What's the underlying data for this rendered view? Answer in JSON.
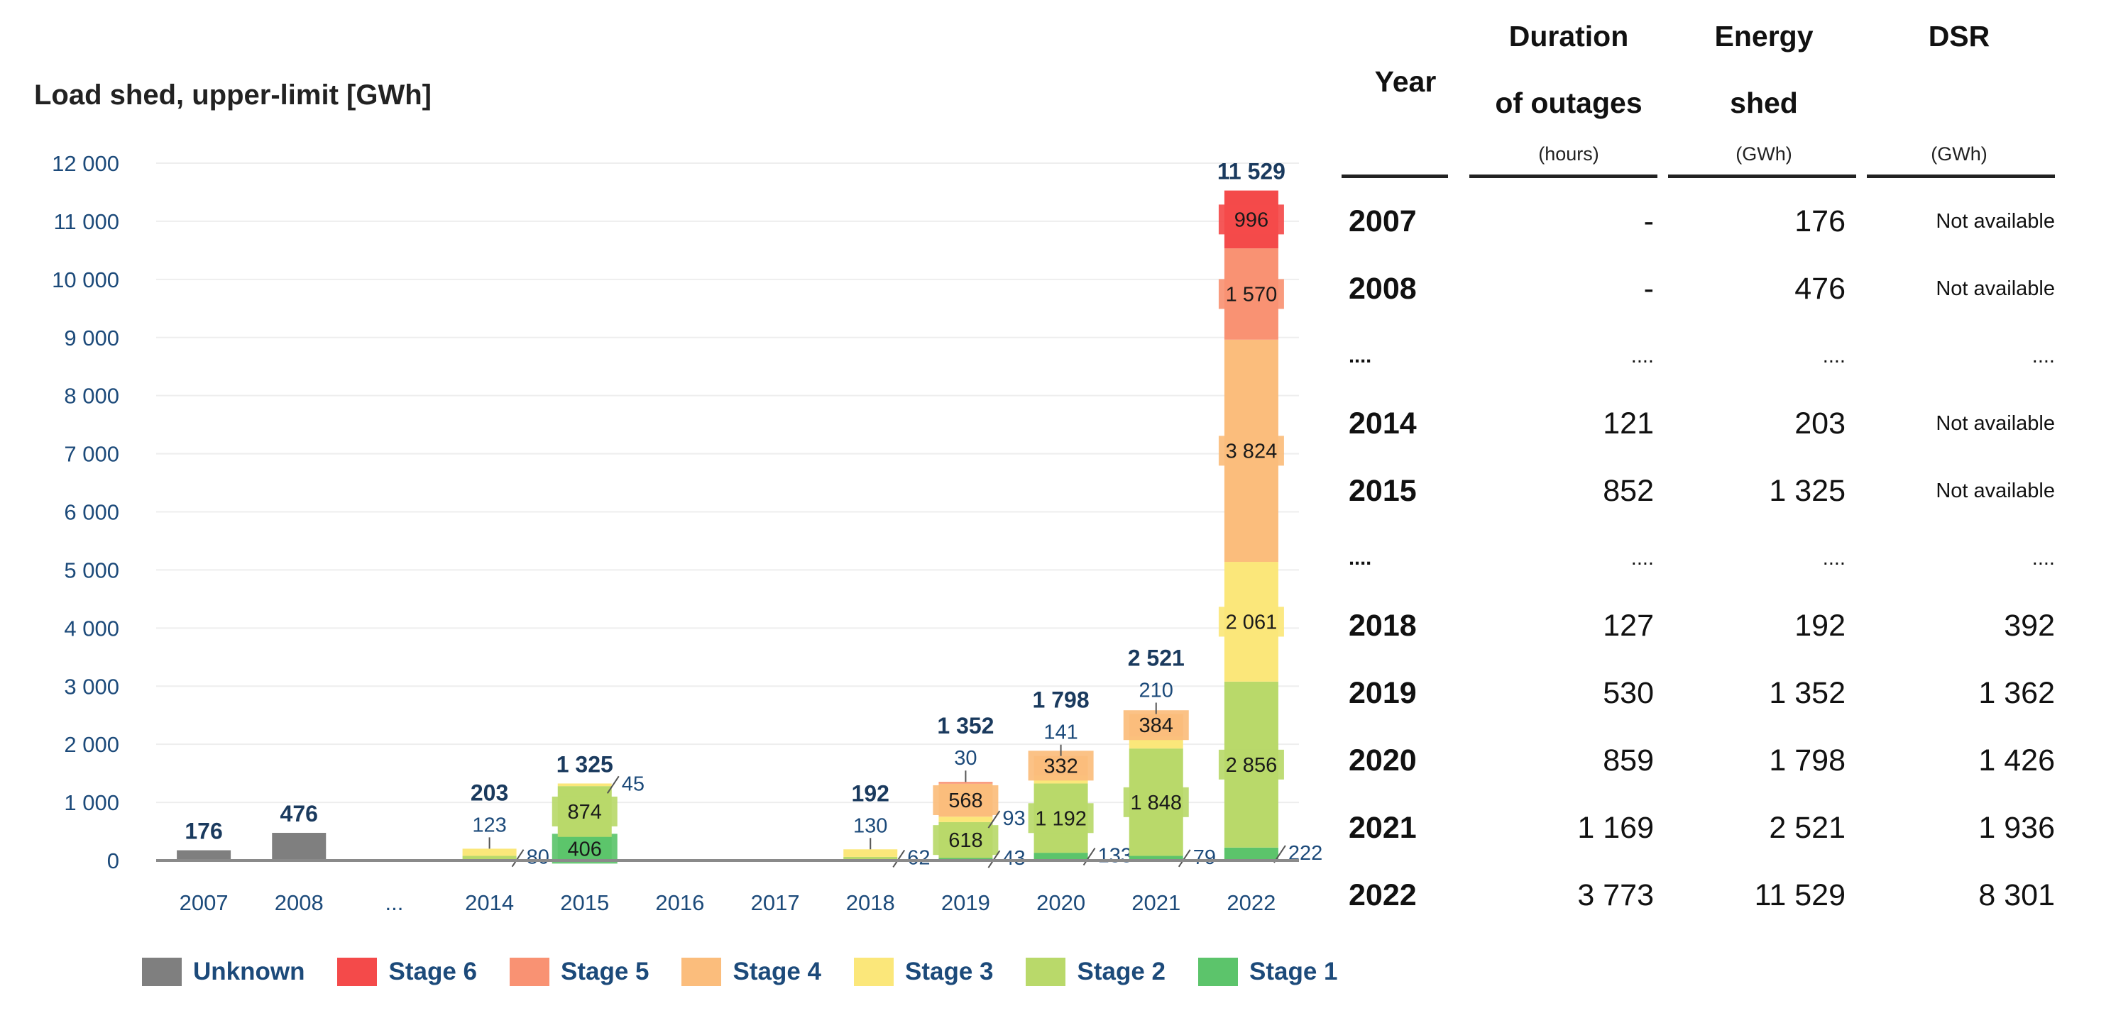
{
  "chart_data": {
    "type": "bar",
    "stacked": true,
    "title": "Load shed, upper-limit [GWh]",
    "categories": [
      "2007",
      "2008",
      "...",
      "2014",
      "2015",
      "2016",
      "2017",
      "2018",
      "2019",
      "2020",
      "2021",
      "2022"
    ],
    "ylim": [
      0,
      12000
    ],
    "yticks": [
      "0",
      "1 000",
      "2 000",
      "3 000",
      "4 000",
      "5 000",
      "6 000",
      "7 000",
      "8 000",
      "9 000",
      "10 000",
      "11 000",
      "12 000"
    ],
    "legend_position": "bottom",
    "series": [
      {
        "name": "Unknown",
        "color": "#7f7f7f",
        "values": [
          176,
          476,
          null,
          0,
          0,
          0,
          0,
          0,
          0,
          0,
          0,
          0
        ]
      },
      {
        "name": "Stage 1",
        "color": "#5cc46b",
        "values": [
          null,
          null,
          null,
          0,
          406,
          0,
          0,
          0,
          43,
          133,
          79,
          222
        ]
      },
      {
        "name": "Stage 2",
        "color": "#b9d96a",
        "values": [
          null,
          null,
          null,
          80,
          874,
          0,
          0,
          62,
          618,
          1192,
          1848,
          2856
        ]
      },
      {
        "name": "Stage 3",
        "color": "#fbe77a",
        "values": [
          null,
          null,
          null,
          123,
          45,
          0,
          0,
          130,
          93,
          141,
          210,
          2061
        ]
      },
      {
        "name": "Stage 4",
        "color": "#fbbd7c",
        "values": [
          null,
          null,
          null,
          0,
          0,
          0,
          0,
          0,
          568,
          332,
          384,
          3824
        ]
      },
      {
        "name": "Stage 5",
        "color": "#f99273",
        "values": [
          null,
          null,
          null,
          0,
          0,
          0,
          0,
          0,
          30,
          0,
          0,
          1570
        ]
      },
      {
        "name": "Stage 6",
        "color": "#f44a4a",
        "values": [
          null,
          null,
          null,
          0,
          0,
          0,
          0,
          0,
          0,
          0,
          0,
          996
        ]
      }
    ],
    "totals": [
      176,
      476,
      null,
      203,
      1325,
      null,
      null,
      192,
      1352,
      1798,
      2521,
      11529
    ],
    "total_labels": [
      "176",
      "476",
      "",
      "203",
      "1 325",
      "",
      "",
      "192",
      "1 352",
      "1 798",
      "2 521",
      "11 529"
    ]
  },
  "legend": [
    {
      "label": "Unknown",
      "color": "#7f7f7f"
    },
    {
      "label": "Stage 6",
      "color": "#f44a4a"
    },
    {
      "label": "Stage 5",
      "color": "#f99273"
    },
    {
      "label": "Stage 4",
      "color": "#fbbd7c"
    },
    {
      "label": "Stage 3",
      "color": "#fbe77a"
    },
    {
      "label": "Stage 2",
      "color": "#b9d96a"
    },
    {
      "label": "Stage 1",
      "color": "#5cc46b"
    }
  ],
  "table": {
    "headers": {
      "year": "Year",
      "duration_l1": "Duration",
      "duration_l2": "of outages",
      "duration_unit": "(hours)",
      "energy_l1": "Energy",
      "energy_l2": "shed",
      "energy_unit": "(GWh)",
      "dsr": "DSR",
      "dsr_unit": "(GWh)"
    },
    "rows": [
      {
        "year": "2007",
        "duration": "-",
        "energy": "176",
        "dsr": "Not available"
      },
      {
        "year": "2008",
        "duration": "-",
        "energy": "476",
        "dsr": "Not available"
      },
      {
        "year": "....",
        "duration": "....",
        "energy": "....",
        "dsr": "...."
      },
      {
        "year": "2014",
        "duration": "121",
        "energy": "203",
        "dsr": "Not available"
      },
      {
        "year": "2015",
        "duration": "852",
        "energy": "1 325",
        "dsr": "Not available"
      },
      {
        "year": "....",
        "duration": "....",
        "energy": "....",
        "dsr": "...."
      },
      {
        "year": "2018",
        "duration": "127",
        "energy": "192",
        "dsr": "392"
      },
      {
        "year": "2019",
        "duration": "530",
        "energy": "1 352",
        "dsr": "1 362"
      },
      {
        "year": "2020",
        "duration": "859",
        "energy": "1 798",
        "dsr": "1 426"
      },
      {
        "year": "2021",
        "duration": "1 169",
        "energy": "2 521",
        "dsr": "1 936"
      },
      {
        "year": "2022",
        "duration": "3 773",
        "energy": "11 529",
        "dsr": "8 301"
      }
    ]
  }
}
